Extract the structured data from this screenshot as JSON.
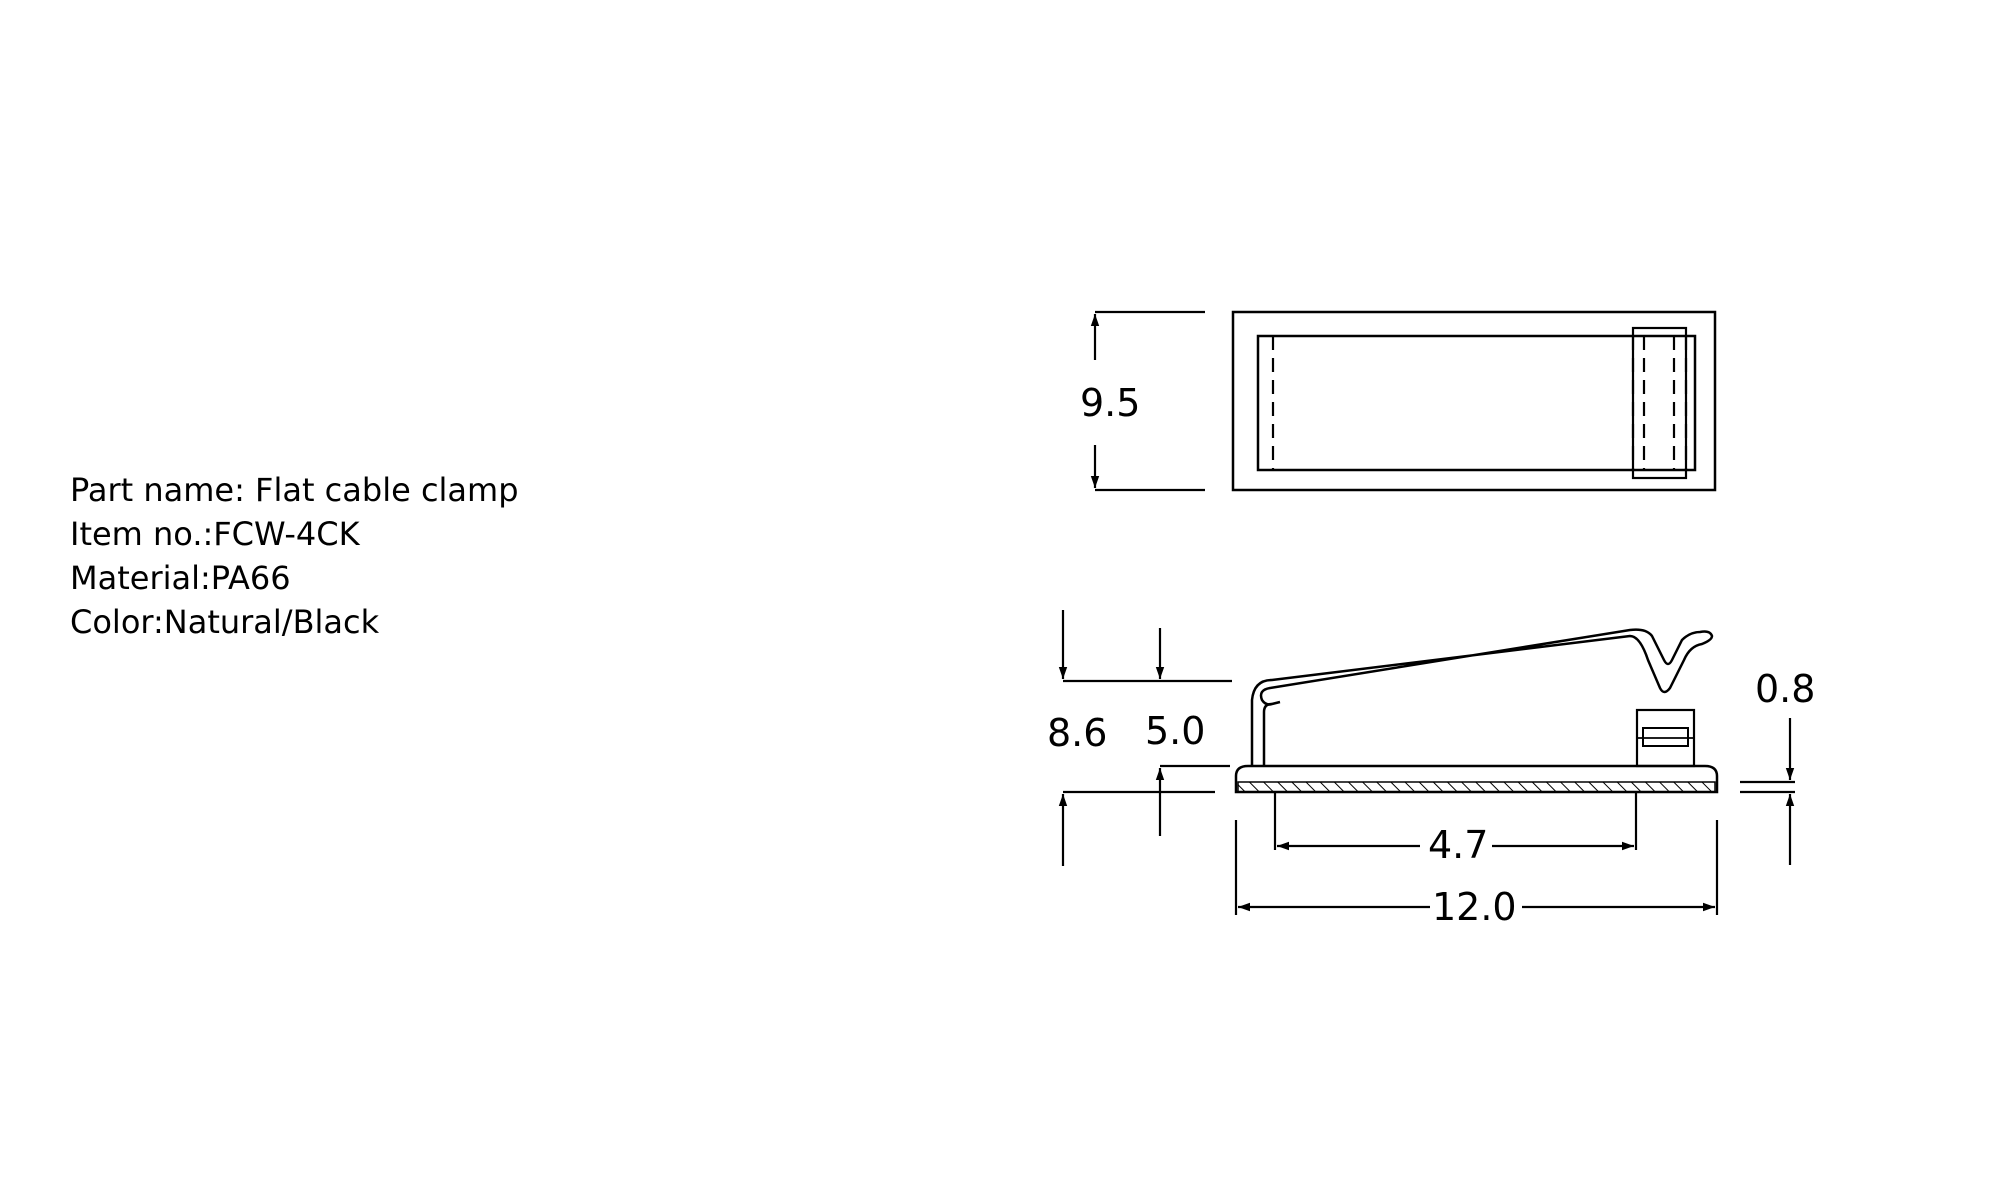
{
  "specs": {
    "part_name": "Part name: Flat cable clamp",
    "item_no": "Item no.:FCW-4CK",
    "material": "Material:PA66",
    "color": "Color:Natural/Black"
  },
  "dimensions": {
    "top_width": "9.5",
    "total_height": "8.6",
    "clamp_height": "5.0",
    "base_thickness": "0.8",
    "inner_length": "4.7",
    "overall_length": "12.0"
  },
  "colors": {
    "line": "#000000",
    "background": "#ffffff"
  }
}
